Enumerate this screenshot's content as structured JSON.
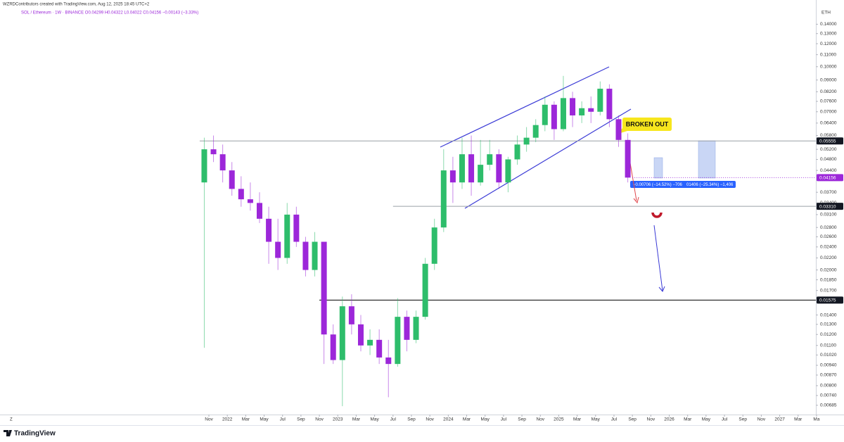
{
  "header": {
    "author_line": "WZRDContributors created with TradingView.com, Aug 12, 2025 18:45 UTC+2",
    "symbol_line": "SOL / Ethereum · 1W · BINANCE  O0.04299  H0.04322  L0.04022  C0.04156  −0.00143 (−3.33%)"
  },
  "chart_data": {
    "type": "candlestick",
    "unit": "ETH",
    "log_scale": true,
    "grid": false,
    "up_color": "#2ebd6b",
    "down_color": "#9c27d9",
    "x": [
      "2021-10",
      "2021-11",
      "2021-12",
      "2022-01",
      "2022-02",
      "2022-03",
      "2022-04",
      "2022-05",
      "2022-06",
      "2022-07",
      "2022-08",
      "2022-09",
      "2022-10",
      "2022-11",
      "2022-12",
      "2023-01",
      "2023-02",
      "2023-03",
      "2023-04",
      "2023-05",
      "2023-06",
      "2023-07",
      "2023-08",
      "2023-09",
      "2023-10",
      "2023-11",
      "2023-12",
      "2024-01",
      "2024-02",
      "2024-03",
      "2024-04",
      "2024-05",
      "2024-06",
      "2024-07",
      "2024-08",
      "2024-09",
      "2024-10",
      "2024-11",
      "2024-12",
      "2025-01",
      "2025-02",
      "2025-03",
      "2025-04",
      "2025-05",
      "2025-06",
      "2025-07",
      "2025-08"
    ],
    "open": [
      0.04,
      0.052,
      0.05,
      0.044,
      0.038,
      0.035,
      0.034,
      0.03,
      0.025,
      0.022,
      0.031,
      0.025,
      0.02,
      0.025,
      0.012,
      0.0098,
      0.015,
      0.013,
      0.011,
      0.0115,
      0.01,
      0.0095,
      0.0138,
      0.0115,
      0.0138,
      0.021,
      0.028,
      0.044,
      0.04,
      0.05,
      0.04,
      0.046,
      0.05,
      0.04,
      0.048,
      0.054,
      0.057,
      0.063,
      0.074,
      0.061,
      0.078,
      0.068,
      0.072,
      0.07,
      0.084,
      0.066,
      0.056
    ],
    "high": [
      0.057,
      0.058,
      0.054,
      0.047,
      0.042,
      0.04,
      0.037,
      0.033,
      0.03,
      0.034,
      0.033,
      0.026,
      0.027,
      0.025,
      0.013,
      0.0162,
      0.0165,
      0.014,
      0.0125,
      0.0125,
      0.0115,
      0.016,
      0.0145,
      0.0145,
      0.022,
      0.03,
      0.052,
      0.049,
      0.057,
      0.058,
      0.056,
      0.056,
      0.052,
      0.049,
      0.058,
      0.062,
      0.066,
      0.079,
      0.076,
      0.093,
      0.082,
      0.076,
      0.079,
      0.089,
      0.087,
      0.068,
      0.059
    ],
    "low": [
      0.0108,
      0.047,
      0.04,
      0.036,
      0.033,
      0.032,
      0.029,
      0.021,
      0.02,
      0.021,
      0.024,
      0.019,
      0.019,
      0.0095,
      0.0095,
      0.0068,
      0.012,
      0.0105,
      0.0102,
      0.0095,
      0.0073,
      0.0093,
      0.0105,
      0.0112,
      0.0135,
      0.02,
      0.027,
      0.034,
      0.038,
      0.036,
      0.039,
      0.044,
      0.038,
      0.037,
      0.046,
      0.051,
      0.055,
      0.06,
      0.056,
      0.06,
      0.062,
      0.064,
      0.064,
      0.068,
      0.062,
      0.053,
      0.04
    ],
    "close": [
      0.052,
      0.05,
      0.044,
      0.038,
      0.035,
      0.034,
      0.03,
      0.025,
      0.022,
      0.031,
      0.025,
      0.02,
      0.025,
      0.012,
      0.0098,
      0.015,
      0.013,
      0.011,
      0.0115,
      0.01,
      0.0095,
      0.0138,
      0.0115,
      0.0138,
      0.021,
      0.028,
      0.044,
      0.04,
      0.05,
      0.04,
      0.046,
      0.05,
      0.04,
      0.048,
      0.054,
      0.057,
      0.063,
      0.074,
      0.061,
      0.078,
      0.068,
      0.072,
      0.07,
      0.084,
      0.066,
      0.056,
      0.04156
    ],
    "ylim": [
      0.0064,
      0.156
    ],
    "yticks": [
      {
        "value": 0.14,
        "label": "0.14000"
      },
      {
        "value": 0.13,
        "label": "0.13000"
      },
      {
        "value": 0.12,
        "label": "0.12000"
      },
      {
        "value": 0.11,
        "label": "0.11000"
      },
      {
        "value": 0.1,
        "label": "0.10000"
      },
      {
        "value": 0.09,
        "label": "0.09000"
      },
      {
        "value": 0.082,
        "label": "0.08200"
      },
      {
        "value": 0.076,
        "label": "0.07600"
      },
      {
        "value": 0.07,
        "label": "0.07000"
      },
      {
        "value": 0.064,
        "label": "0.06400"
      },
      {
        "value": 0.058,
        "label": "0.05800"
      },
      {
        "value": 0.052,
        "label": "0.05200"
      },
      {
        "value": 0.048,
        "label": "0.04800"
      },
      {
        "value": 0.044,
        "label": "0.04400"
      },
      {
        "value": 0.037,
        "label": "0.03700"
      },
      {
        "value": 0.034,
        "label": "0.03400"
      },
      {
        "value": 0.031,
        "label": "0.03100"
      },
      {
        "value": 0.028,
        "label": "0.02800"
      },
      {
        "value": 0.026,
        "label": "0.02600"
      },
      {
        "value": 0.024,
        "label": "0.02400"
      },
      {
        "value": 0.022,
        "label": "0.02200"
      },
      {
        "value": 0.02,
        "label": "0.02000"
      },
      {
        "value": 0.0185,
        "label": "0.01850"
      },
      {
        "value": 0.017,
        "label": "0.01700"
      },
      {
        "value": 0.014,
        "label": "0.01400"
      },
      {
        "value": 0.013,
        "label": "0.01300"
      },
      {
        "value": 0.012,
        "label": "0.01200"
      },
      {
        "value": 0.011,
        "label": "0.01100"
      },
      {
        "value": 0.0102,
        "label": "0.01020"
      },
      {
        "value": 0.0094,
        "label": "0.00940"
      },
      {
        "value": 0.0087,
        "label": "0.00870"
      },
      {
        "value": 0.008,
        "label": "0.00800"
      },
      {
        "value": 0.0074,
        "label": "0.00740"
      },
      {
        "value": 0.00685,
        "label": "0.00685"
      }
    ],
    "xticks": [
      {
        "value": "2021-11",
        "label": "Nov"
      },
      {
        "value": "2022-01",
        "label": "2022"
      },
      {
        "value": "2022-03",
        "label": "Mar"
      },
      {
        "value": "2022-05",
        "label": "May"
      },
      {
        "value": "2022-07",
        "label": "Jul"
      },
      {
        "value": "2022-09",
        "label": "Sep"
      },
      {
        "value": "2022-11",
        "label": "Nov"
      },
      {
        "value": "2023-01",
        "label": "2023"
      },
      {
        "value": "2023-03",
        "label": "Mar"
      },
      {
        "value": "2023-05",
        "label": "May"
      },
      {
        "value": "2023-07",
        "label": "Jul"
      },
      {
        "value": "2023-09",
        "label": "Sep"
      },
      {
        "value": "2023-11",
        "label": "Nov"
      },
      {
        "value": "2024-01",
        "label": "2024"
      },
      {
        "value": "2024-03",
        "label": "Mar"
      },
      {
        "value": "2024-05",
        "label": "May"
      },
      {
        "value": "2024-07",
        "label": "Jul"
      },
      {
        "value": "2024-09",
        "label": "Sep"
      },
      {
        "value": "2024-11",
        "label": "Nov"
      },
      {
        "value": "2025-01",
        "label": "2025"
      },
      {
        "value": "2025-03",
        "label": "Mar"
      },
      {
        "value": "2025-05",
        "label": "May"
      },
      {
        "value": "2025-07",
        "label": "Jul"
      },
      {
        "value": "2025-09",
        "label": "Sep"
      },
      {
        "value": "2025-11",
        "label": "Nov"
      },
      {
        "value": "2026-01",
        "label": "2026"
      },
      {
        "value": "2026-03",
        "label": "Mar"
      },
      {
        "value": "2026-05",
        "label": "May"
      },
      {
        "value": "2026-07",
        "label": "Jul"
      },
      {
        "value": "2026-09",
        "label": "Sep"
      },
      {
        "value": "2026-11",
        "label": "Nov"
      },
      {
        "value": "2027-01",
        "label": "2027"
      },
      {
        "value": "2027-03",
        "label": "Mar"
      },
      {
        "value": "2027-05",
        "label": "Ma"
      }
    ],
    "price_lines": [
      {
        "value": 0.05555,
        "color": "#9aa0a6",
        "from": "2021-10"
      },
      {
        "value": {
          "value": 0.0331,
          "label": "0.03310"
        },
        "color": "#9aa0a6",
        "from": "2023-07"
      },
      {
        "value": 0.01575,
        "color": "#000000",
        "from": "2022-11"
      }
    ],
    "last_price": {
      "value": 0.04156,
      "color": "#9c27d9"
    },
    "annotations": {
      "callout": "BROKEN OUT",
      "measure_1": "−0.00706 (−14.52%) −706",
      "measure_2": "01406 (−25.34%) −1,406"
    }
  },
  "footer": {
    "timezone": "Z",
    "logo": "TradingView"
  }
}
